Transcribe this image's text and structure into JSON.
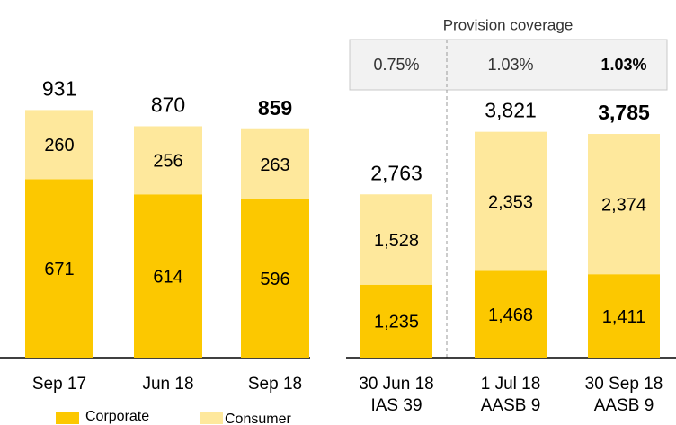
{
  "chart_data": [
    {
      "type": "stacked_bar",
      "categories": [
        "Sep 17",
        "Jun 18",
        "Sep 18"
      ],
      "series": [
        {
          "name": "Corporate",
          "color": "#fcc800",
          "values": [
            671,
            614,
            596
          ]
        },
        {
          "name": "Consumer",
          "color": "#fee89c",
          "values": [
            260,
            256,
            263
          ]
        }
      ],
      "totals": [
        931,
        870,
        859
      ],
      "bold_last": true,
      "ylim": [
        0,
        1000
      ]
    },
    {
      "type": "stacked_bar",
      "title": "Provision coverage",
      "categories": [
        "30 Jun 18",
        "1 Jul 18",
        "30 Sep 18"
      ],
      "subcategories": [
        "IAS 39",
        "AASB 9",
        "AASB 9"
      ],
      "series": [
        {
          "name": "Corporate",
          "color": "#fcc800",
          "values": [
            1235,
            1468,
            1411
          ],
          "value_labels": [
            "1,235",
            "1,468",
            "1,411"
          ]
        },
        {
          "name": "Consumer",
          "color": "#fee89c",
          "values": [
            1528,
            2353,
            2374
          ],
          "value_labels": [
            "1,528",
            "2,353",
            "2,374"
          ]
        }
      ],
      "totals": [
        2763,
        3821,
        3785
      ],
      "totals_labels": [
        "2,763",
        "3,821",
        "3,785"
      ],
      "coverage": [
        0.75,
        1.03,
        1.03
      ],
      "coverage_labels": [
        "0.75%",
        "1.03%",
        "1.03%"
      ],
      "bold_last": true,
      "ylim": [
        0,
        4500
      ]
    }
  ]
}
